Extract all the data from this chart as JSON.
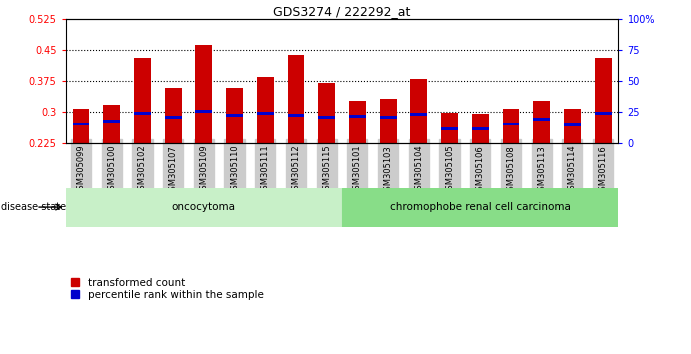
{
  "title": "GDS3274 / 222292_at",
  "samples": [
    "GSM305099",
    "GSM305100",
    "GSM305102",
    "GSM305107",
    "GSM305109",
    "GSM305110",
    "GSM305111",
    "GSM305112",
    "GSM305115",
    "GSM305101",
    "GSM305103",
    "GSM305104",
    "GSM305105",
    "GSM305106",
    "GSM305108",
    "GSM305113",
    "GSM305114",
    "GSM305116"
  ],
  "transformed_count": [
    0.308,
    0.318,
    0.432,
    0.358,
    0.463,
    0.358,
    0.385,
    0.44,
    0.37,
    0.328,
    0.332,
    0.382,
    0.298,
    0.295,
    0.308,
    0.328,
    0.308,
    0.432
  ],
  "percentile_rank": [
    0.272,
    0.278,
    0.298,
    0.288,
    0.302,
    0.292,
    0.298,
    0.293,
    0.288,
    0.29,
    0.288,
    0.295,
    0.262,
    0.26,
    0.272,
    0.282,
    0.27,
    0.298
  ],
  "y_min": 0.225,
  "y_max": 0.525,
  "y_ticks_left": [
    0.225,
    0.3,
    0.375,
    0.45,
    0.525
  ],
  "y_ticks_right": [
    0,
    25,
    50,
    75,
    100
  ],
  "bar_color": "#cc0000",
  "blue_color": "#0000cc",
  "oncocytoma_count": 9,
  "chromophobe_count": 9,
  "oncocytoma_label": "oncocytoma",
  "chromophobe_label": "chromophobe renal cell carcinoma",
  "disease_state_label": "disease state",
  "legend_red_label": "transformed count",
  "legend_blue_label": "percentile rank within the sample",
  "group_bg_light": "#c8f0c8",
  "group_bg_dark": "#88dd88",
  "tick_label_bg": "#cccccc"
}
